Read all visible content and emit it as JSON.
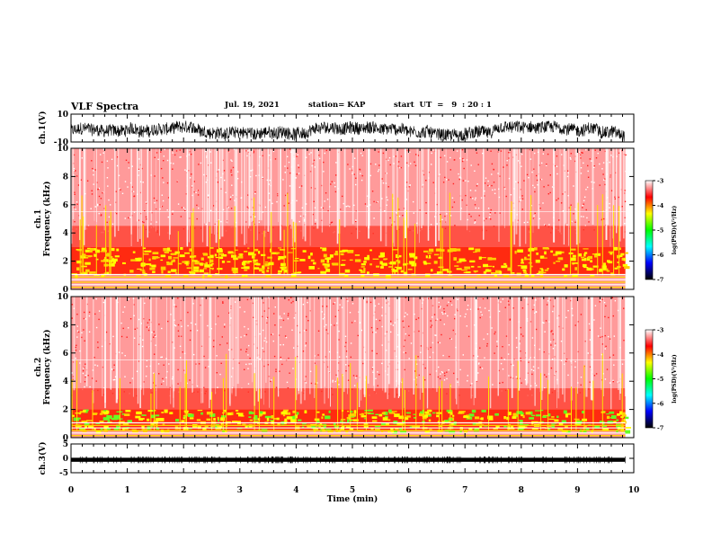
{
  "header": {
    "title": "VLF Spectra",
    "date": "Jul. 19, 2021",
    "station": "station= KAP",
    "start": "start  UT  =   9  : 20 : 1"
  },
  "chart_data": [
    {
      "type": "line",
      "panel": "ch1-waveform",
      "ylabel": "ch.1(V)",
      "ylim": [
        -10,
        10
      ],
      "yticks": [
        "10",
        "-10"
      ],
      "xlim": [
        0,
        10
      ],
      "description_values": {
        "mean": 0,
        "approx_range": [
          -8,
          8
        ]
      }
    },
    {
      "type": "heatmap",
      "panel": "ch1-spectrogram",
      "ylabel": "ch.1\nFrequency (kHz)",
      "ylim": [
        0,
        10
      ],
      "yticks": [
        "0",
        "2",
        "4",
        "6",
        "8",
        "10"
      ],
      "xlim": [
        0,
        9.85
      ],
      "dominant_band_khz": [
        1.0,
        3.0
      ]
    },
    {
      "type": "heatmap",
      "panel": "ch2-spectrogram",
      "ylabel": "ch.2\nFrequency (kHz)",
      "ylim": [
        0,
        10
      ],
      "yticks": [
        "0",
        "2",
        "4",
        "6",
        "8",
        "10"
      ],
      "xlim": [
        0,
        9.85
      ],
      "dominant_band_khz": [
        0.5,
        2.0
      ]
    },
    {
      "type": "line",
      "panel": "ch3-waveform",
      "ylabel": "ch.3(V)",
      "ylim": [
        -5,
        5
      ],
      "yticks": [
        "5",
        "0",
        "-5"
      ],
      "xlim": [
        0,
        10
      ],
      "xlabel": "Time (min)",
      "xticks": [
        "0",
        "1",
        "2",
        "3",
        "4",
        "5",
        "6",
        "7",
        "8",
        "9",
        "10"
      ],
      "description_values": {
        "mean": -0.5,
        "approx_range": [
          -1.2,
          0.2
        ]
      }
    }
  ],
  "colorbar": {
    "label": "log(PSD)(V²/Hz)",
    "range": [
      -7,
      -3
    ],
    "ticks": [
      "-3",
      "-4",
      "-5",
      "-6",
      "-7"
    ],
    "colors": [
      "#000000",
      "#0000ff",
      "#00ffff",
      "#00ff00",
      "#ffff00",
      "#ff0000",
      "#ffffff"
    ]
  }
}
